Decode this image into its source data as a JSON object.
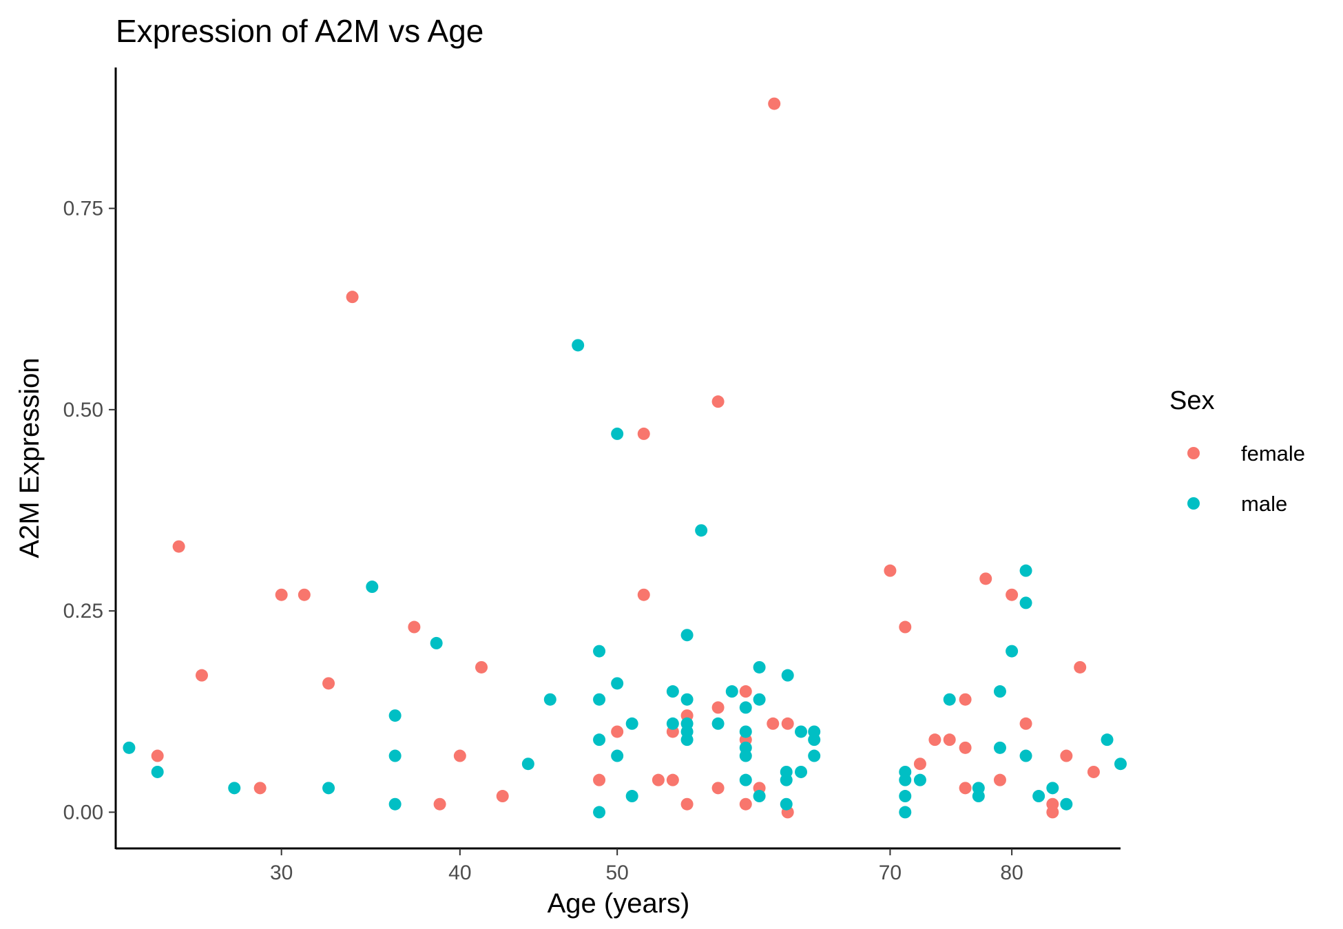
{
  "chart_data": {
    "type": "scatter",
    "title": "Expression of  A2M  vs Age",
    "xlabel": "Age (years)",
    "ylabel": "A2M  Expression",
    "x_scale": "sqrt",
    "xlim": [
      22,
      89.5
    ],
    "ylim": [
      -0.045,
      0.925
    ],
    "x_ticks": [
      30,
      40,
      50,
      70,
      80
    ],
    "x_tick_labels": [
      "30",
      "40",
      "50",
      "70",
      "80"
    ],
    "y_ticks": [
      0,
      0.25,
      0.5,
      0.75
    ],
    "y_tick_labels": [
      "0.00",
      "0.25",
      "0.50",
      "0.75"
    ],
    "grid": false,
    "legend": {
      "title": "Sex",
      "position": "right"
    },
    "series": [
      {
        "name": "female",
        "color": "#f8766d",
        "points": [
          [
            23.9,
            0.07
          ],
          [
            24.9,
            0.33
          ],
          [
            26.0,
            0.17
          ],
          [
            28.9,
            0.03
          ],
          [
            30.0,
            0.27
          ],
          [
            31.2,
            0.27
          ],
          [
            32.5,
            0.16
          ],
          [
            33.8,
            0.64
          ],
          [
            37.3,
            0.23
          ],
          [
            38.8,
            0.01
          ],
          [
            40.0,
            0.07
          ],
          [
            41.3,
            0.18
          ],
          [
            42.6,
            0.02
          ],
          [
            48.8,
            0.04
          ],
          [
            50.0,
            0.1
          ],
          [
            51.8,
            0.47
          ],
          [
            51.8,
            0.27
          ],
          [
            52.8,
            0.04
          ],
          [
            53.8,
            0.1
          ],
          [
            53.8,
            0.04
          ],
          [
            54.8,
            0.12
          ],
          [
            54.8,
            0.01
          ],
          [
            57.0,
            0.51
          ],
          [
            57.0,
            0.13
          ],
          [
            57.0,
            0.03
          ],
          [
            59.0,
            0.15
          ],
          [
            59.0,
            0.09
          ],
          [
            59.0,
            0.01
          ],
          [
            60.0,
            0.03
          ],
          [
            61.0,
            0.11
          ],
          [
            61.1,
            0.88
          ],
          [
            62.1,
            0.11
          ],
          [
            62.1,
            0.0
          ],
          [
            70.0,
            0.3
          ],
          [
            71.2,
            0.23
          ],
          [
            72.4,
            0.06
          ],
          [
            73.6,
            0.09
          ],
          [
            74.8,
            0.09
          ],
          [
            76.1,
            0.14
          ],
          [
            76.1,
            0.08
          ],
          [
            76.1,
            0.03
          ],
          [
            77.8,
            0.29
          ],
          [
            79.0,
            0.04
          ],
          [
            80.0,
            0.27
          ],
          [
            81.2,
            0.11
          ],
          [
            83.5,
            0.01
          ],
          [
            83.5,
            0.0
          ],
          [
            84.7,
            0.07
          ],
          [
            85.9,
            0.18
          ],
          [
            87.1,
            0.05
          ]
        ]
      },
      {
        "name": "male",
        "color": "#00bfc4",
        "points": [
          [
            22.6,
            0.08
          ],
          [
            23.9,
            0.05
          ],
          [
            27.6,
            0.03
          ],
          [
            32.5,
            0.03
          ],
          [
            34.9,
            0.28
          ],
          [
            36.2,
            0.12
          ],
          [
            36.2,
            0.07
          ],
          [
            36.2,
            0.01
          ],
          [
            38.6,
            0.21
          ],
          [
            44.2,
            0.06
          ],
          [
            45.6,
            0.14
          ],
          [
            47.4,
            0.58
          ],
          [
            48.8,
            0.2
          ],
          [
            48.8,
            0.14
          ],
          [
            48.8,
            0.09
          ],
          [
            48.8,
            0.0
          ],
          [
            50.0,
            0.47
          ],
          [
            50.0,
            0.16
          ],
          [
            50.0,
            0.07
          ],
          [
            51.0,
            0.11
          ],
          [
            51.0,
            0.02
          ],
          [
            53.8,
            0.15
          ],
          [
            53.8,
            0.11
          ],
          [
            54.8,
            0.22
          ],
          [
            54.8,
            0.14
          ],
          [
            54.8,
            0.11
          ],
          [
            54.8,
            0.1
          ],
          [
            54.8,
            0.09
          ],
          [
            55.8,
            0.35
          ],
          [
            57.0,
            0.11
          ],
          [
            58.0,
            0.15
          ],
          [
            59.0,
            0.13
          ],
          [
            59.0,
            0.1
          ],
          [
            59.0,
            0.08
          ],
          [
            59.0,
            0.07
          ],
          [
            59.0,
            0.04
          ],
          [
            60.0,
            0.18
          ],
          [
            60.0,
            0.14
          ],
          [
            60.0,
            0.02
          ],
          [
            62.0,
            0.05
          ],
          [
            62.0,
            0.04
          ],
          [
            62.0,
            0.01
          ],
          [
            62.1,
            0.17
          ],
          [
            63.1,
            0.1
          ],
          [
            63.1,
            0.05
          ],
          [
            64.1,
            0.1
          ],
          [
            64.1,
            0.09
          ],
          [
            64.1,
            0.07
          ],
          [
            71.2,
            0.05
          ],
          [
            71.2,
            0.04
          ],
          [
            71.2,
            0.02
          ],
          [
            71.2,
            0.0
          ],
          [
            72.4,
            0.04
          ],
          [
            74.8,
            0.14
          ],
          [
            77.2,
            0.03
          ],
          [
            77.2,
            0.02
          ],
          [
            79.0,
            0.08
          ],
          [
            79.0,
            0.15
          ],
          [
            80.0,
            0.2
          ],
          [
            81.2,
            0.3
          ],
          [
            81.2,
            0.26
          ],
          [
            81.2,
            0.07
          ],
          [
            82.3,
            0.02
          ],
          [
            83.5,
            0.03
          ],
          [
            84.7,
            0.01
          ],
          [
            88.3,
            0.09
          ],
          [
            89.5,
            0.06
          ]
        ]
      }
    ]
  }
}
